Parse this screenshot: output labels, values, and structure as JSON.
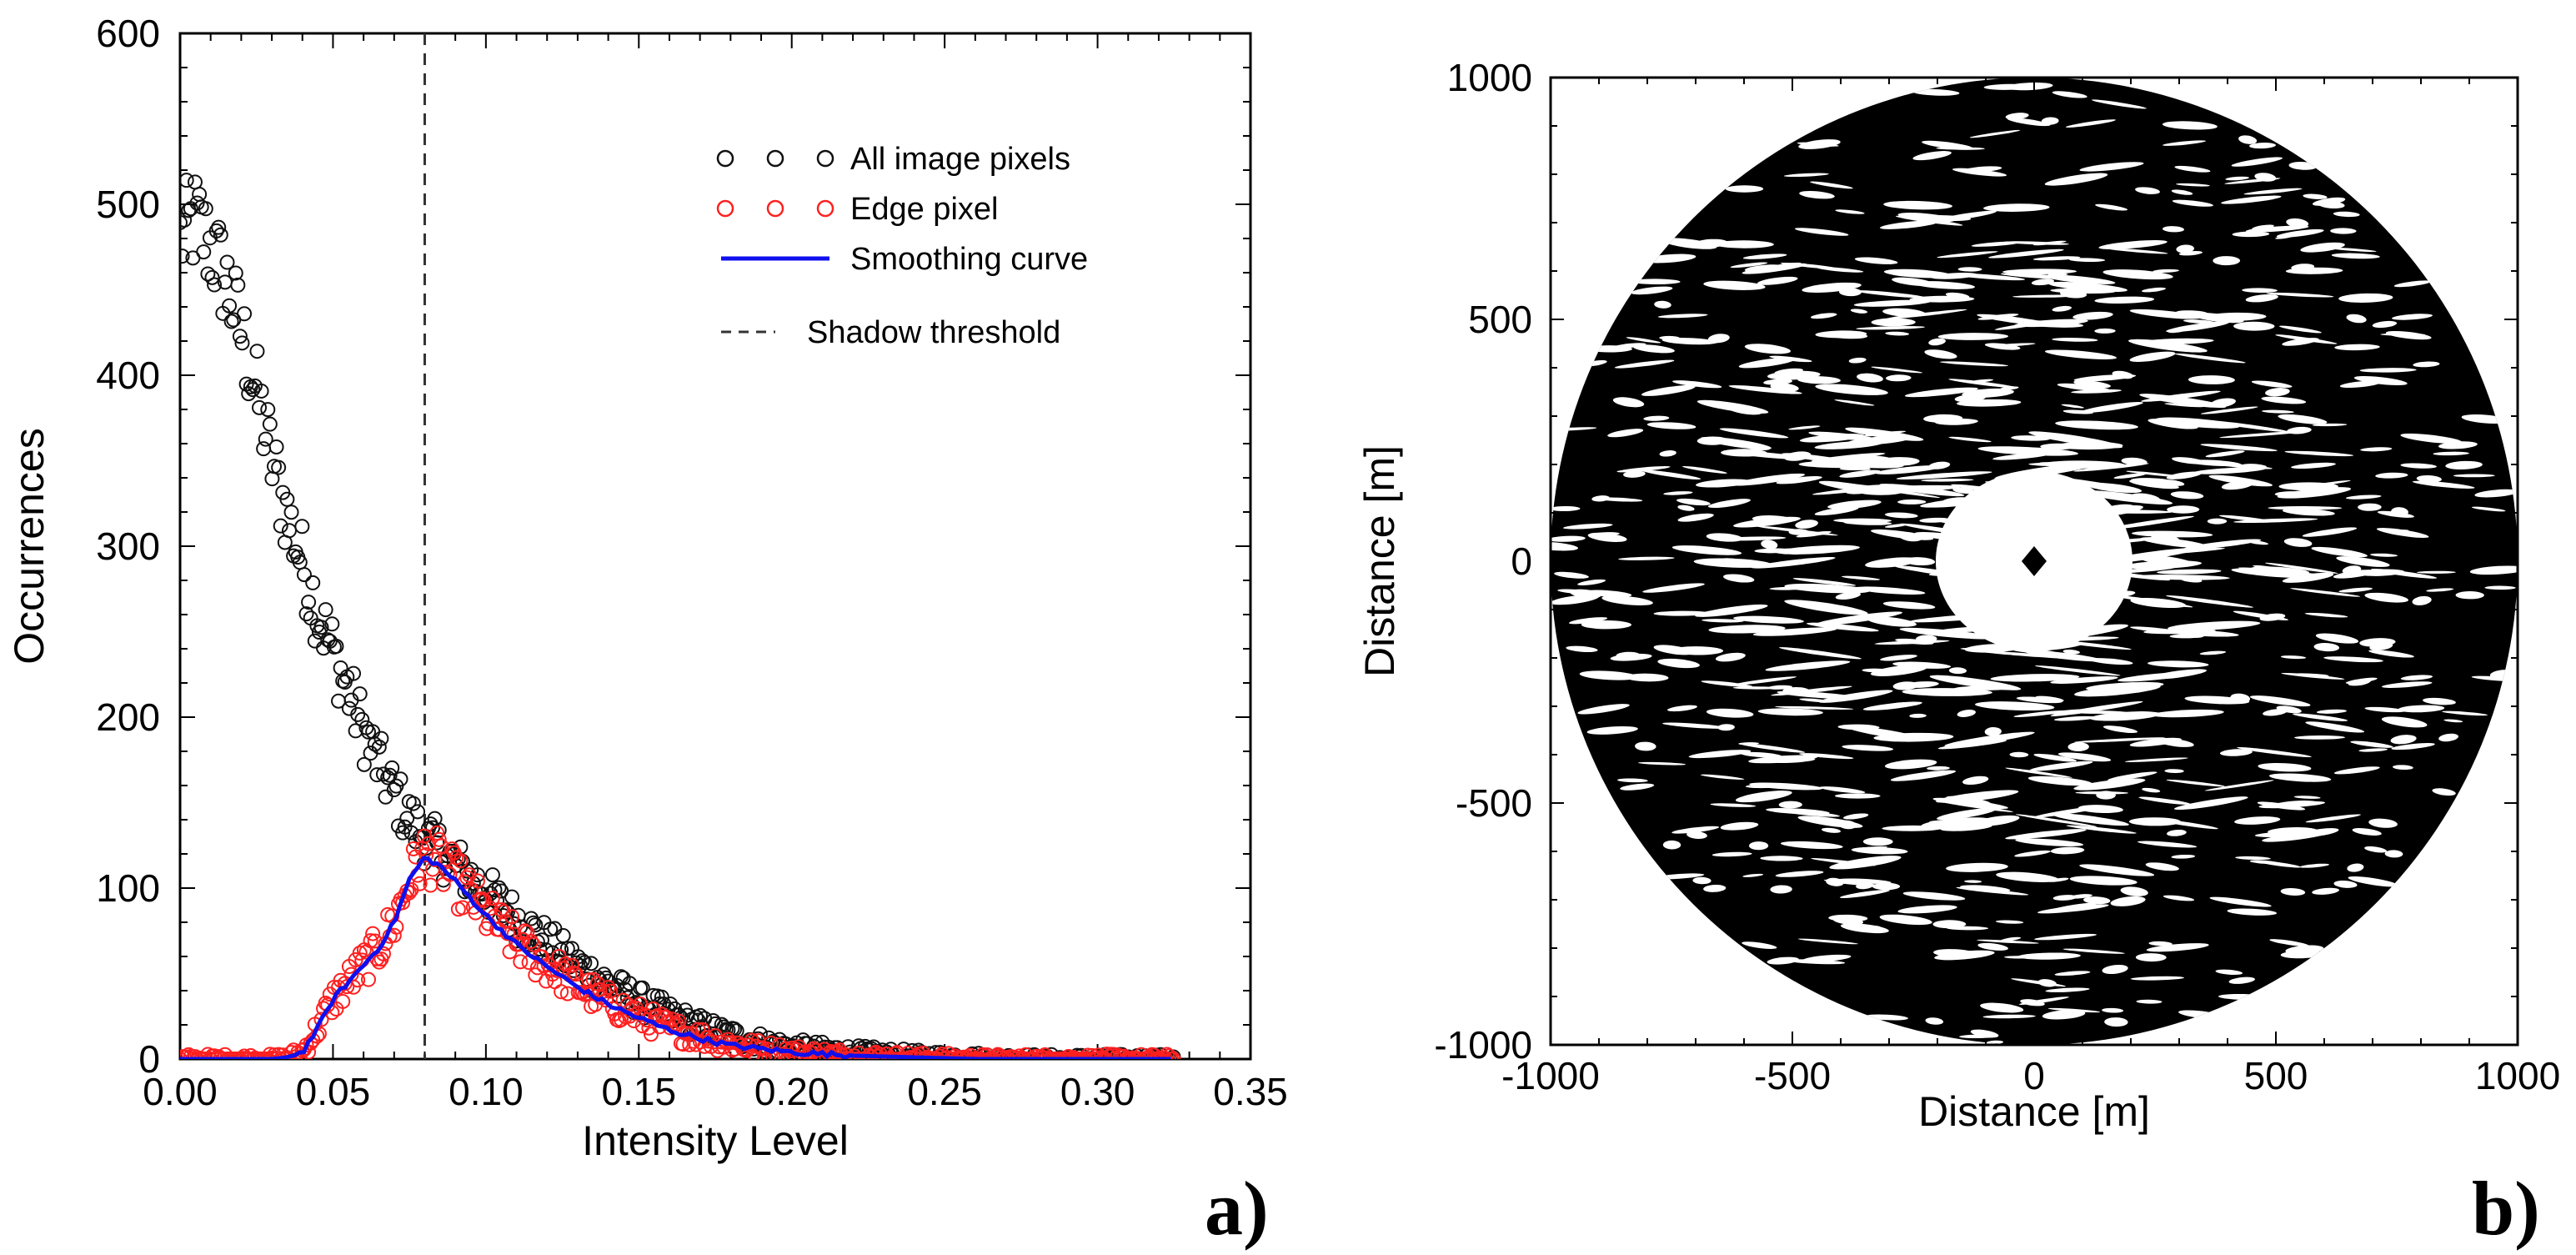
{
  "chart_data": [
    {
      "type": "scatter",
      "panel": "a)",
      "xlabel": "Intensity Level",
      "ylabel": "Occurrences",
      "xlim": [
        0,
        0.35
      ],
      "ylim": [
        0,
        600
      ],
      "x_ticks": [
        "0.00",
        "0.05",
        "0.10",
        "0.15",
        "0.20",
        "0.25",
        "0.30",
        "0.35"
      ],
      "y_ticks": [
        "0",
        "100",
        "200",
        "300",
        "400",
        "500",
        "600"
      ],
      "threshold_x": 0.08,
      "legend": {
        "position": "top-right",
        "entries": [
          "All image pixels",
          "Edge pixel",
          "Smoothing curve",
          "Shadow threshold"
        ]
      },
      "colors": {
        "all": "#111111",
        "edge": "#ff2020",
        "smooth": "#1010ee",
        "threshold": "#333333"
      },
      "series": [
        {
          "name": "All image pixels",
          "marker": "circle-open",
          "x": [
            0.0,
            0.005,
            0.01,
            0.015,
            0.02,
            0.025,
            0.03,
            0.035,
            0.04,
            0.045,
            0.05,
            0.055,
            0.06,
            0.065,
            0.07,
            0.075,
            0.08,
            0.085,
            0.09,
            0.095,
            0.1,
            0.11,
            0.12,
            0.13,
            0.14,
            0.15,
            0.16,
            0.17,
            0.18,
            0.19,
            0.2,
            0.22,
            0.24,
            0.26,
            0.28,
            0.3,
            0.325
          ],
          "y": [
            480,
            490,
            475,
            455,
            425,
            390,
            350,
            318,
            290,
            262,
            238,
            215,
            192,
            172,
            155,
            140,
            130,
            122,
            114,
            106,
            98,
            82,
            68,
            55,
            44,
            34,
            26,
            19,
            14,
            10,
            7,
            4,
            2,
            1,
            0,
            0,
            0
          ]
        },
        {
          "name": "Edge pixel",
          "marker": "circle-open",
          "x": [
            0.0,
            0.01,
            0.02,
            0.03,
            0.035,
            0.04,
            0.045,
            0.05,
            0.055,
            0.06,
            0.065,
            0.07,
            0.075,
            0.08,
            0.085,
            0.09,
            0.095,
            0.1,
            0.11,
            0.12,
            0.13,
            0.14,
            0.15,
            0.16,
            0.17,
            0.18,
            0.19,
            0.2,
            0.22,
            0.24,
            0.26,
            0.28,
            0.3,
            0.325
          ],
          "y": [
            0,
            0,
            0,
            0,
            1,
            4,
            18,
            35,
            45,
            55,
            65,
            80,
            105,
            120,
            115,
            105,
            95,
            85,
            68,
            55,
            43,
            33,
            25,
            18,
            13,
            9,
            6,
            4,
            2,
            1,
            0,
            0,
            0,
            0
          ]
        },
        {
          "name": "Smoothing curve",
          "marker": "line",
          "x": [
            0.0,
            0.01,
            0.02,
            0.03,
            0.035,
            0.04,
            0.045,
            0.05,
            0.055,
            0.06,
            0.065,
            0.07,
            0.075,
            0.08,
            0.085,
            0.09,
            0.095,
            0.1,
            0.11,
            0.12,
            0.13,
            0.14,
            0.15,
            0.16,
            0.17,
            0.18,
            0.19,
            0.2,
            0.22,
            0.24,
            0.26,
            0.28,
            0.3,
            0.325
          ],
          "y": [
            0,
            0,
            0,
            0,
            1,
            4,
            18,
            35,
            45,
            55,
            65,
            80,
            105,
            118,
            113,
            104,
            94,
            84,
            67,
            54,
            42,
            32,
            24,
            17,
            12,
            8,
            6,
            4,
            2,
            1,
            0,
            0,
            0,
            0
          ]
        }
      ]
    },
    {
      "type": "heatmap",
      "panel": "b)",
      "xlabel": "Distance [m]",
      "ylabel": "Distance [m]",
      "xlim": [
        -1000,
        1000
      ],
      "ylim": [
        -1000,
        1000
      ],
      "x_ticks": [
        "-1000",
        "-500",
        "0",
        "500",
        "1000"
      ],
      "y_ticks": [
        "-1000",
        "-500",
        "0",
        "500",
        "1000"
      ],
      "disk_radius": 1000,
      "clear_zone_radius": 200,
      "center_marker": {
        "x": 0,
        "y": 0,
        "shape": "diamond"
      },
      "colors": {
        "disk": "#000000",
        "streak": "#ffffff"
      }
    }
  ]
}
